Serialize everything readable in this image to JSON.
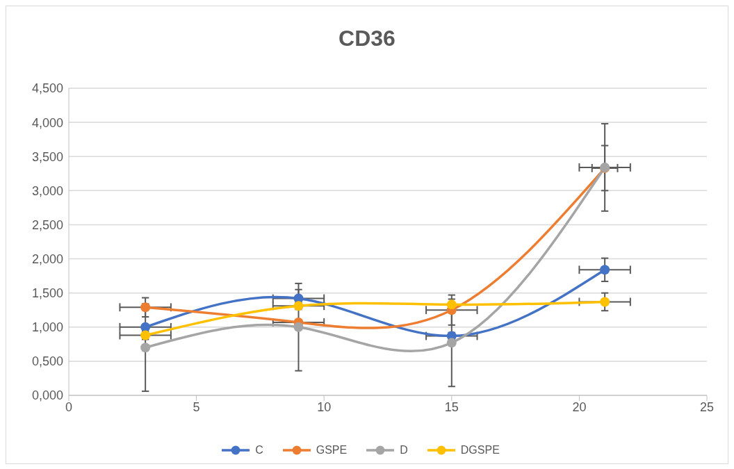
{
  "chart_data": {
    "type": "line",
    "title": "CD36",
    "x": [
      3,
      9,
      15,
      21
    ],
    "xlim": [
      0,
      25
    ],
    "xticks": [
      0,
      5,
      10,
      15,
      20,
      25
    ],
    "ylim": [
      0,
      4.5
    ],
    "yticks": [
      {
        "value": 0,
        "label": "0,000"
      },
      {
        "value": 0.5,
        "label": "0,500"
      },
      {
        "value": 1,
        "label": "1,000"
      },
      {
        "value": 1.5,
        "label": "1,500"
      },
      {
        "value": 2,
        "label": "2,000"
      },
      {
        "value": 2.5,
        "label": "2,500"
      },
      {
        "value": 3,
        "label": "3,000"
      },
      {
        "value": 3.5,
        "label": "3,500"
      },
      {
        "value": 4,
        "label": "4,000"
      },
      {
        "value": 4.5,
        "label": "4,500"
      }
    ],
    "grid": "y",
    "legend": "bottom",
    "marker": "circle",
    "line_style": "solid",
    "series": [
      {
        "name": "C",
        "color": "#4472c4",
        "values": [
          1.0,
          1.42,
          0.87,
          1.84
        ],
        "errors": [
          null,
          0.13,
          0.05,
          0.17
        ],
        "xerrors": [
          1,
          1,
          1,
          1
        ]
      },
      {
        "name": "GSPE",
        "color": "#ed7d31",
        "values": [
          1.29,
          1.07,
          1.25,
          3.33
        ],
        "errors": [
          0.14,
          null,
          0.22,
          0.33
        ],
        "xerrors": [
          1,
          1,
          1,
          0.5
        ]
      },
      {
        "name": "D",
        "color": "#a5a5a5",
        "values": [
          0.7,
          1.0,
          0.77,
          3.34
        ],
        "errors": [
          0.64,
          0.64,
          0.64,
          0.64
        ],
        "xerrors": [
          null,
          null,
          null,
          1
        ]
      },
      {
        "name": "DGSPE",
        "color": "#ffc000",
        "values": [
          0.88,
          1.31,
          1.33,
          1.37
        ],
        "errors": [
          0.06,
          0.05,
          null,
          0.13
        ],
        "xerrors": [
          1,
          1,
          null,
          1
        ]
      }
    ]
  }
}
